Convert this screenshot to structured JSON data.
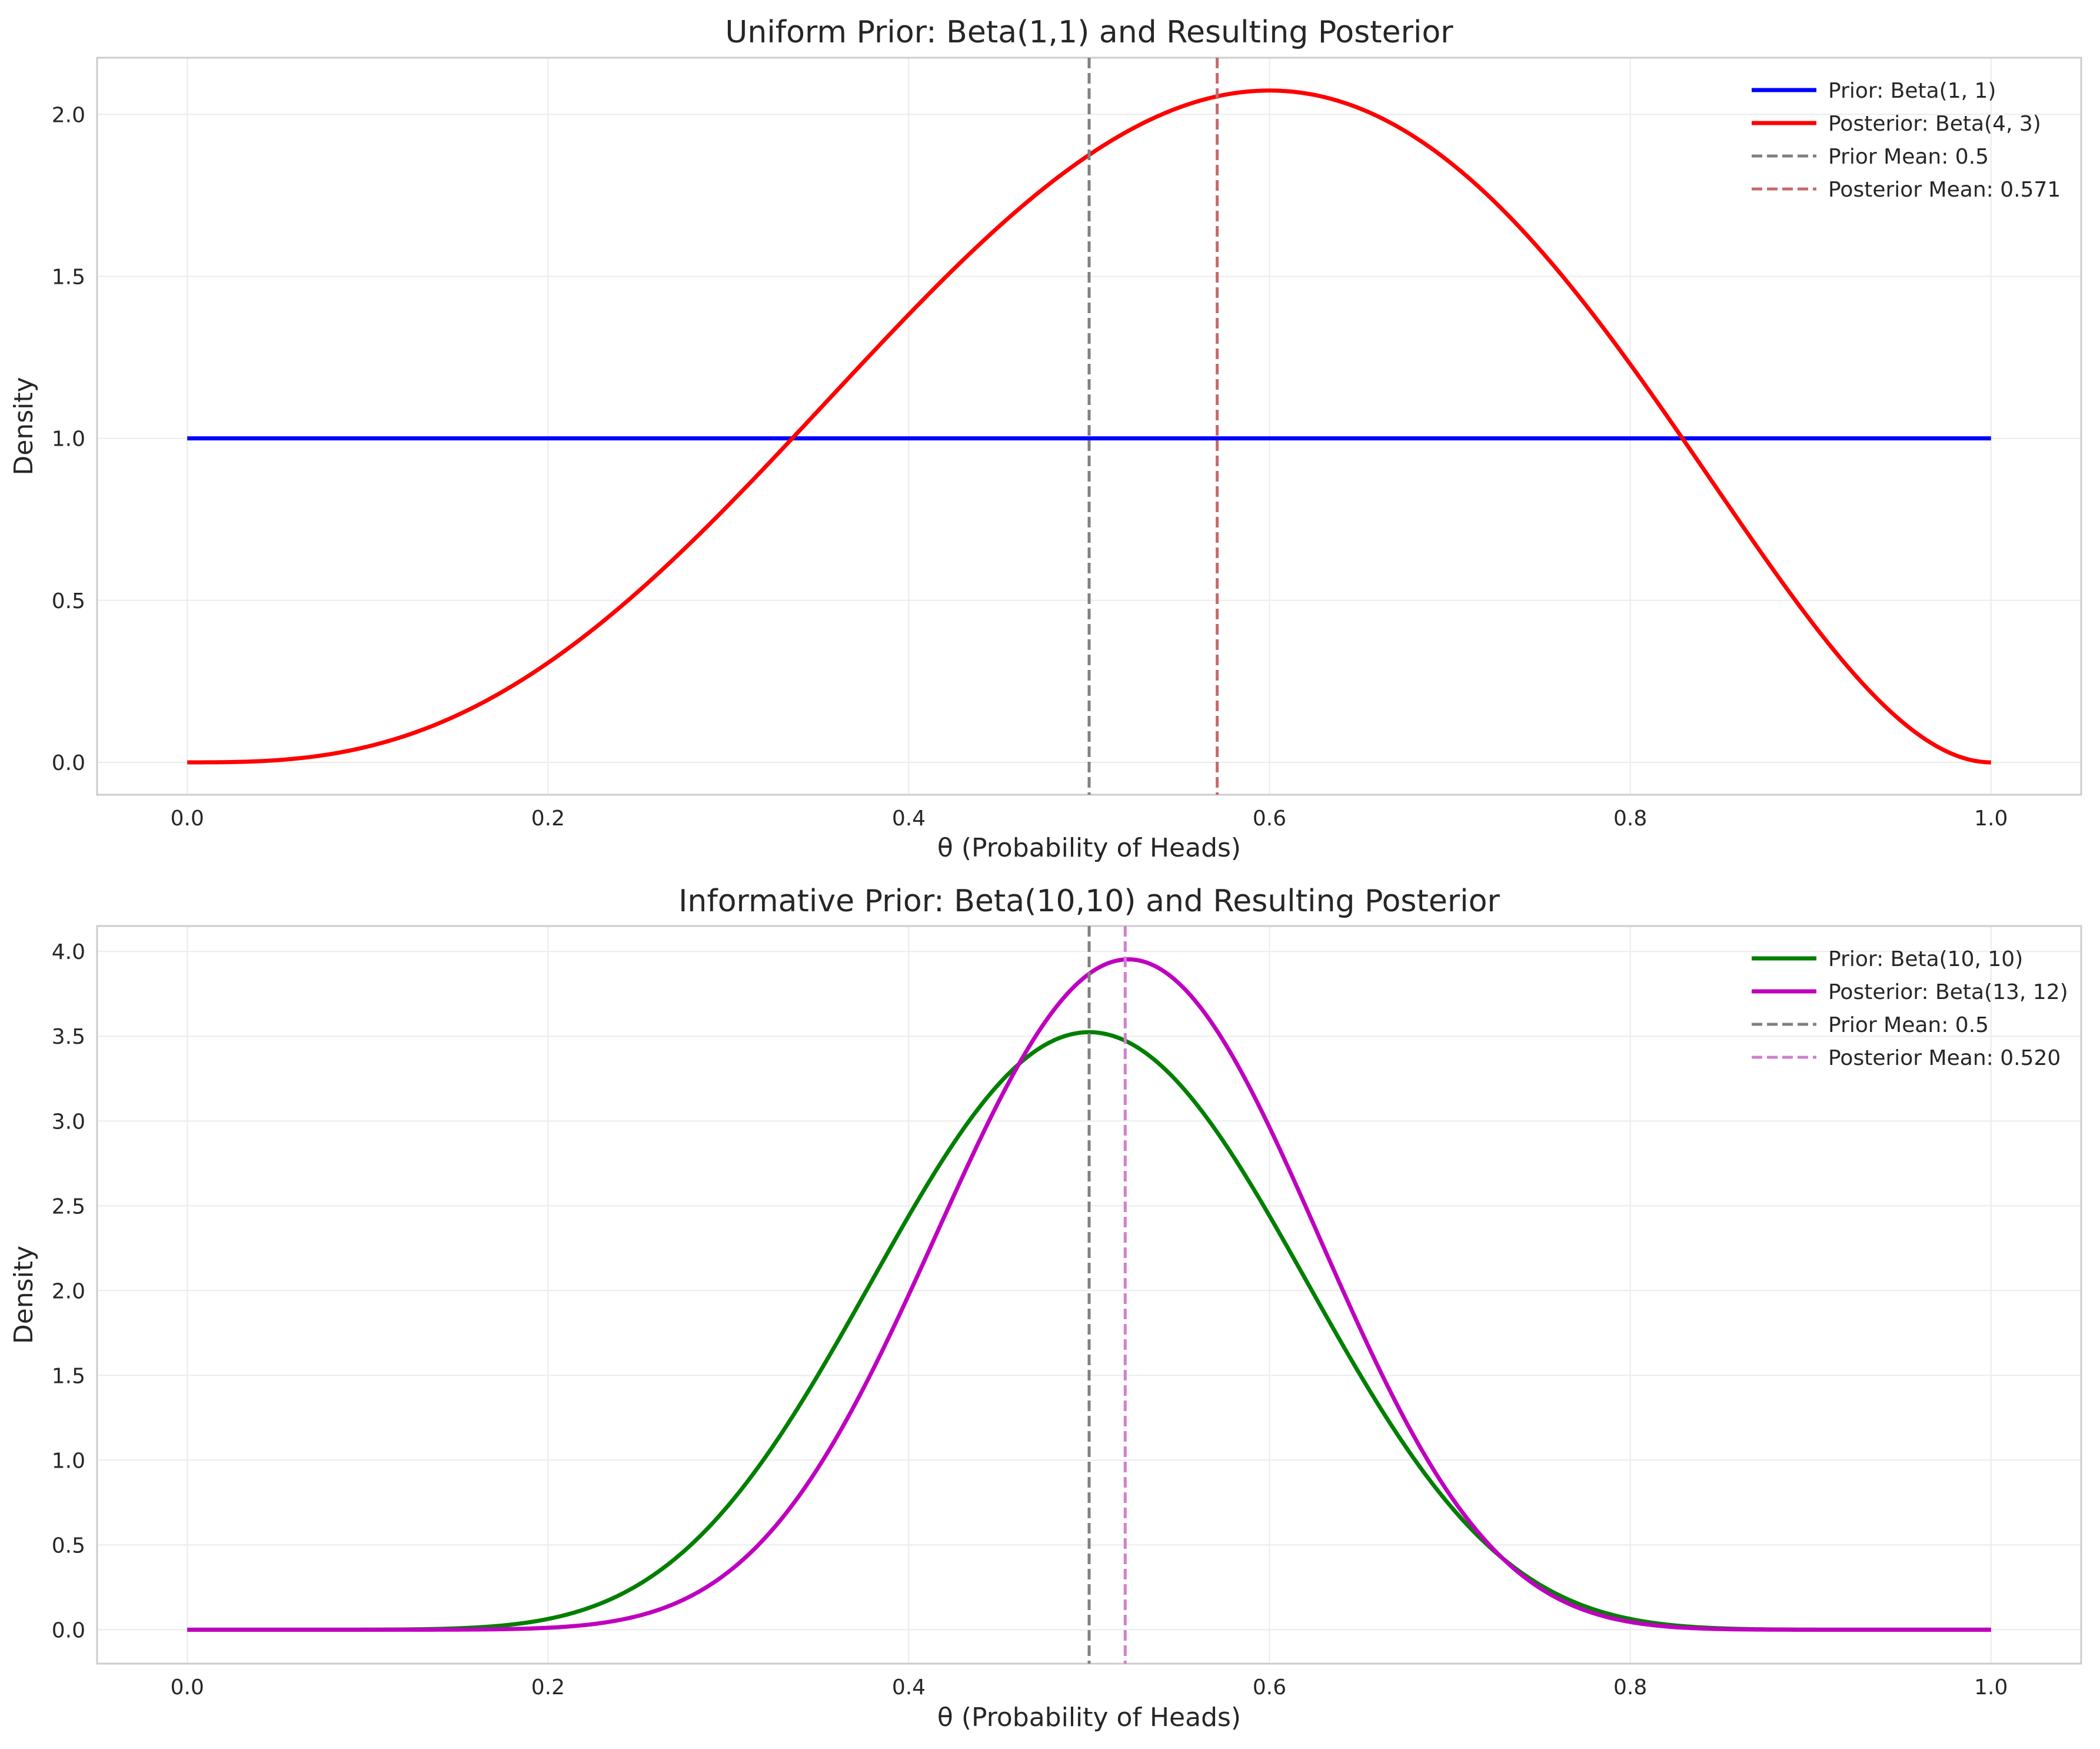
{
  "chart_data": [
    {
      "type": "line",
      "title": "Uniform Prior: Beta(1,1) and Resulting Posterior",
      "xlabel": "θ (Probability of Heads)",
      "ylabel": "Density",
      "xlim": [
        -0.05,
        1.05
      ],
      "ylim": [
        -0.1,
        2.175
      ],
      "xticks": [
        0.0,
        0.2,
        0.4,
        0.6,
        0.8,
        1.0
      ],
      "xtick_labels": [
        "0.0",
        "0.2",
        "0.4",
        "0.6",
        "0.8",
        "1.0"
      ],
      "yticks": [
        0.0,
        0.5,
        1.0,
        1.5,
        2.0
      ],
      "ytick_labels": [
        "0.0",
        "0.5",
        "1.0",
        "1.5",
        "2.0"
      ],
      "grid": true,
      "legend_position": "top-right",
      "series": [
        {
          "name": "Prior: Beta(1, 1)",
          "color": "#0000ff",
          "style": "solid",
          "dist": "beta",
          "a": 1,
          "b": 1
        },
        {
          "name": "Posterior: Beta(4, 3)",
          "color": "#ff0000",
          "style": "solid",
          "dist": "beta",
          "a": 4,
          "b": 3
        },
        {
          "name": "Prior Mean: 0.5",
          "color": "#808080",
          "style": "dashed",
          "dist": "vline",
          "x": 0.5
        },
        {
          "name": "Posterior Mean: 0.571",
          "color": "#c46a6a",
          "style": "dashed",
          "dist": "vline",
          "x": 0.571
        }
      ]
    },
    {
      "type": "line",
      "title": "Informative Prior: Beta(10,10) and Resulting Posterior",
      "xlabel": "θ (Probability of Heads)",
      "ylabel": "Density",
      "xlim": [
        -0.05,
        1.05
      ],
      "ylim": [
        -0.2,
        4.15
      ],
      "xticks": [
        0.0,
        0.2,
        0.4,
        0.6,
        0.8,
        1.0
      ],
      "xtick_labels": [
        "0.0",
        "0.2",
        "0.4",
        "0.6",
        "0.8",
        "1.0"
      ],
      "yticks": [
        0.0,
        0.5,
        1.0,
        1.5,
        2.0,
        2.5,
        3.0,
        3.5,
        4.0
      ],
      "ytick_labels": [
        "0.0",
        "0.5",
        "1.0",
        "1.5",
        "2.0",
        "2.5",
        "3.0",
        "3.5",
        "4.0"
      ],
      "grid": true,
      "legend_position": "top-right",
      "series": [
        {
          "name": "Prior: Beta(10, 10)",
          "color": "#007f00",
          "style": "solid",
          "dist": "beta",
          "a": 10,
          "b": 10
        },
        {
          "name": "Posterior: Beta(13, 12)",
          "color": "#bf00bf",
          "style": "solid",
          "dist": "beta",
          "a": 13,
          "b": 12
        },
        {
          "name": "Prior Mean: 0.5",
          "color": "#808080",
          "style": "dashed",
          "dist": "vline",
          "x": 0.5
        },
        {
          "name": "Posterior Mean: 0.520",
          "color": "#d080d0",
          "style": "dashed",
          "dist": "vline",
          "x": 0.52
        }
      ]
    }
  ]
}
